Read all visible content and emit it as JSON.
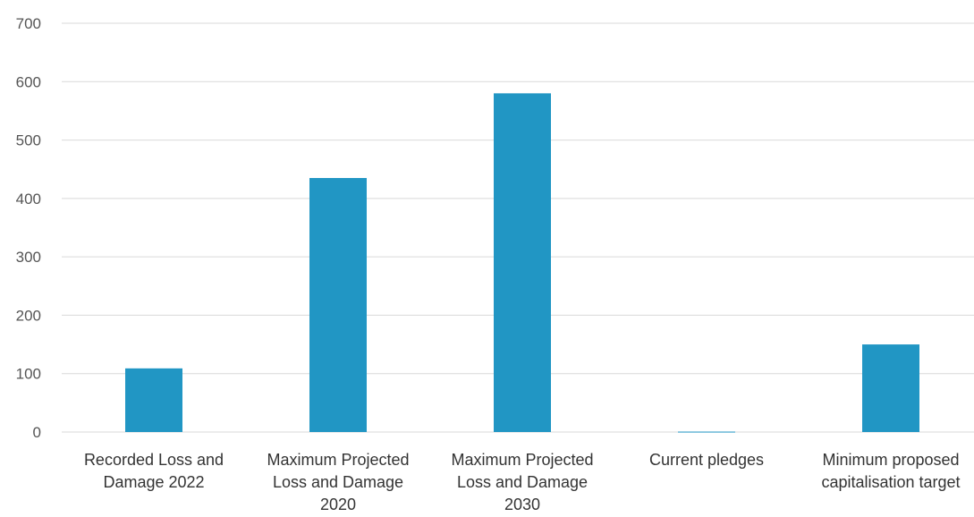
{
  "chart_data": {
    "type": "bar",
    "categories": [
      [
        "Recorded Loss and",
        "Damage 2022"
      ],
      [
        "Maximum Projected",
        "Loss and Damage",
        "2020"
      ],
      [
        "Maximum Projected",
        "Loss and Damage",
        "2030"
      ],
      [
        "Current pledges"
      ],
      [
        "Minimum proposed",
        "capitalisation target"
      ]
    ],
    "values": [
      109,
      435,
      580,
      0.7,
      150
    ],
    "ylim": [
      0,
      700
    ],
    "yticks": [
      0,
      100,
      200,
      300,
      400,
      500,
      600,
      700
    ],
    "grid": true,
    "bar_color": "#2196c4",
    "title": "",
    "xlabel": "",
    "ylabel": ""
  }
}
